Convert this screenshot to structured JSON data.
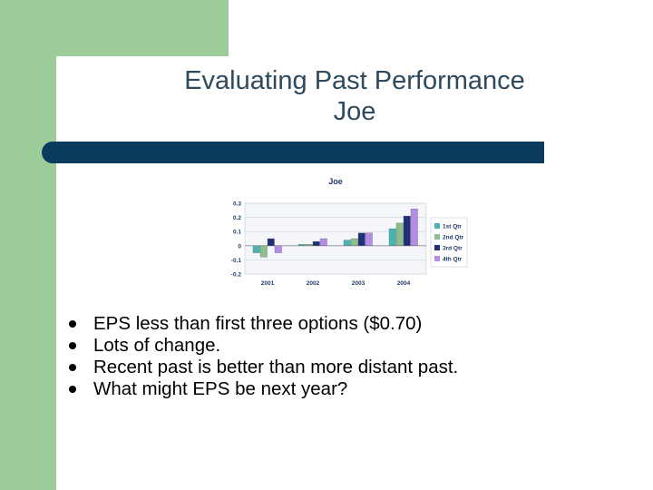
{
  "slide": {
    "title_line1": "Evaluating Past Performance",
    "title_line2": "Joe"
  },
  "bullets": [
    "EPS less than first three options ($0.70)",
    "Lots of change.",
    "Recent past is better than more distant past.",
    "What might EPS be next year?"
  ],
  "colors": {
    "background_green": "#9ccc98",
    "title_text": "#2d4a5e",
    "title_bar": "#0b3c5d",
    "series": [
      "#4ab5b0",
      "#8cbf8c",
      "#1f2f7a",
      "#b58be8"
    ]
  },
  "chart_data": {
    "type": "bar",
    "title": "Joe",
    "categories": [
      "2001",
      "2002",
      "2003",
      "2004"
    ],
    "series": [
      {
        "name": "1st Qtr",
        "values": [
          -0.05,
          0.01,
          0.04,
          0.12
        ]
      },
      {
        "name": "2nd Qtr",
        "values": [
          -0.08,
          0.01,
          0.05,
          0.16
        ]
      },
      {
        "name": "3rd Qtr",
        "values": [
          0.05,
          0.03,
          0.09,
          0.21
        ]
      },
      {
        "name": "4th Qtr",
        "values": [
          -0.05,
          0.05,
          0.09,
          0.26
        ]
      }
    ],
    "ylim": [
      -0.2,
      0.3
    ],
    "yticks": [
      0.3,
      0.2,
      0.1,
      0,
      -0.1,
      -0.2
    ],
    "ytick_labels": [
      "0.3",
      "0.2",
      "0.1",
      "0",
      "-0.1",
      "-0.2"
    ],
    "grid": true,
    "legend_position": "right"
  }
}
